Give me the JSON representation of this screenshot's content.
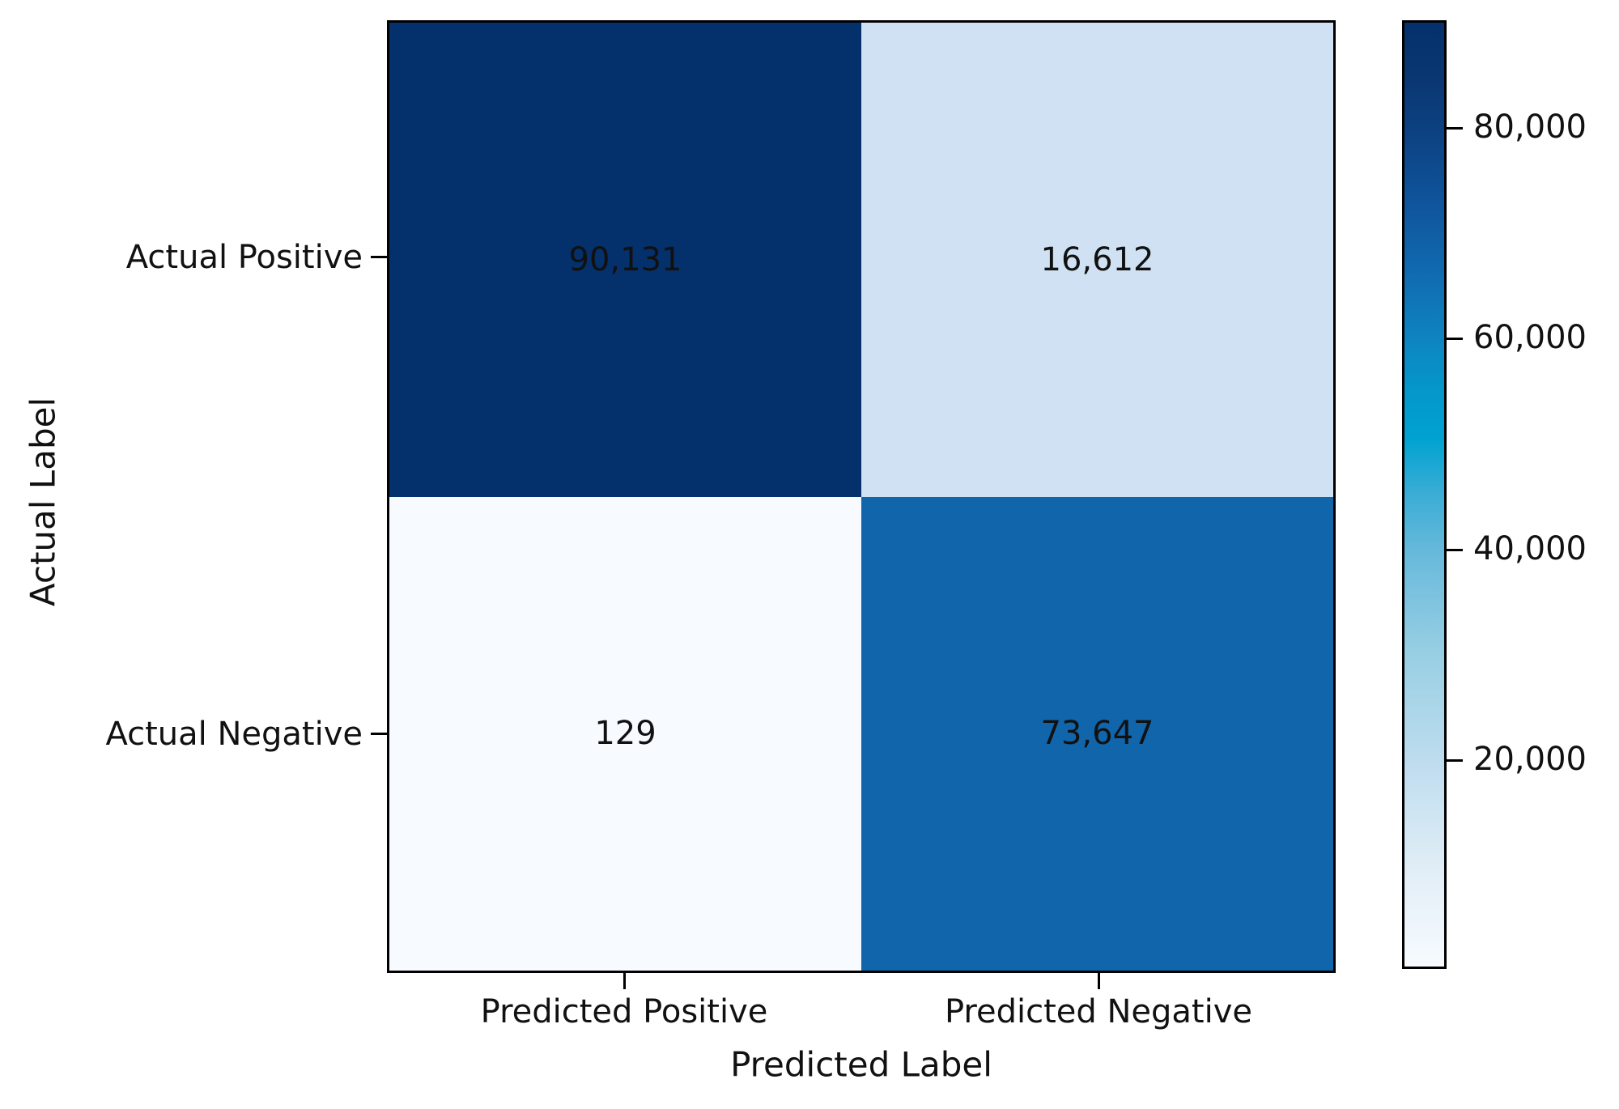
{
  "chart_data": {
    "type": "heatmap",
    "xlabel": "Predicted Label",
    "ylabel": "Actual Label",
    "x_categories": [
      "Predicted Positive",
      "Predicted Negative"
    ],
    "y_categories": [
      "Actual Positive",
      "Actual Negative"
    ],
    "values": [
      [
        90131,
        16612
      ],
      [
        129,
        73647
      ]
    ],
    "cell_labels": [
      [
        "90,131",
        "16,612"
      ],
      [
        "129",
        "73,647"
      ]
    ],
    "cell_colors": [
      [
        "#04306b",
        "#cfe1f2"
      ],
      [
        "#f7fbff",
        "#1065ab"
      ]
    ],
    "value_range": [
      129,
      90131
    ],
    "colorbar": {
      "tick_labels": [
        "80,000",
        "60,000",
        "40,000",
        "20,000"
      ],
      "tick_values": [
        80000,
        60000,
        40000,
        20000
      ],
      "gradient_stops": [
        {
          "pos": "0%",
          "color": "#f7fbff"
        },
        {
          "pos": "10%",
          "color": "#e2eef7"
        },
        {
          "pos": "22%",
          "color": "#bddcee"
        },
        {
          "pos": "33%",
          "color": "#99cfe4"
        },
        {
          "pos": "44%",
          "color": "#66b9db"
        },
        {
          "pos": "50%",
          "color": "#3badd5"
        },
        {
          "pos": "56%",
          "color": "#00a2d2"
        },
        {
          "pos": "61%",
          "color": "#0597ca"
        },
        {
          "pos": "66%",
          "color": "#0d86c1"
        },
        {
          "pos": "73%",
          "color": "#116cb0"
        },
        {
          "pos": "81%",
          "color": "#0f549c"
        },
        {
          "pos": "88.5%",
          "color": "#0d4181"
        },
        {
          "pos": "95%",
          "color": "#093570"
        },
        {
          "pos": "100%",
          "color": "#04306b"
        }
      ]
    },
    "grid": false,
    "legend": "colorbar-right"
  }
}
